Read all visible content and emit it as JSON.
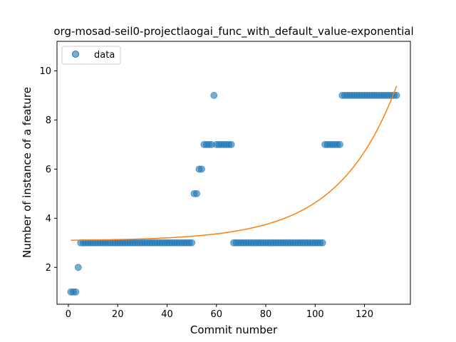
{
  "chart_data": {
    "type": "scatter",
    "title": "org-mosad-seil0-projectlaogai_func_with_default_value-exponential",
    "xlabel": "Commit number",
    "ylabel": "Number of instance of a feature",
    "xlim": [
      -4.6,
      138.6
    ],
    "ylim": [
      0.5,
      11.2
    ],
    "xticks": [
      0,
      20,
      40,
      60,
      80,
      100,
      120
    ],
    "yticks": [
      2,
      4,
      6,
      8,
      10
    ],
    "grid": false,
    "legend": {
      "position": "upper-left",
      "entries": [
        "data"
      ]
    },
    "colors": {
      "data": "#1f77b4",
      "fit": "#ff7f0e"
    },
    "series": [
      {
        "name": "data",
        "kind": "scatter",
        "segments": [
          {
            "x_from": 1,
            "x_to": 3,
            "y": 1
          },
          {
            "x_from": 4,
            "x_to": 4,
            "y": 2
          },
          {
            "x_from": 5,
            "x_to": 50,
            "y": 3
          },
          {
            "x_from": 51,
            "x_to": 52,
            "y": 5
          },
          {
            "x_from": 53,
            "x_to": 54,
            "y": 6
          },
          {
            "x_from": 55,
            "x_to": 58,
            "y": 7
          },
          {
            "x_from": 59,
            "x_to": 59,
            "y": 9
          },
          {
            "x_from": 60,
            "x_to": 66,
            "y": 7
          },
          {
            "x_from": 67,
            "x_to": 103,
            "y": 3
          },
          {
            "x_from": 104,
            "x_to": 110,
            "y": 7
          },
          {
            "x_from": 111,
            "x_to": 133,
            "y": 9
          }
        ]
      },
      {
        "name": "",
        "kind": "line",
        "model": "exponential",
        "a": 0.0224,
        "b": 0.0424,
        "c": 3.08,
        "x_range": [
          1,
          133
        ]
      }
    ]
  }
}
